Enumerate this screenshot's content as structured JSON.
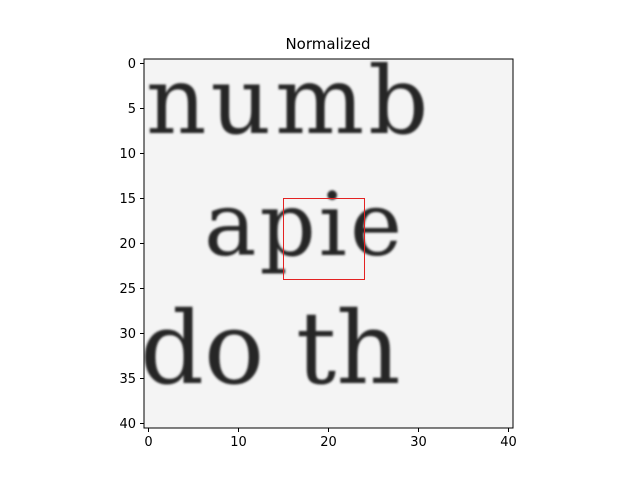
{
  "chart_data": {
    "type": "heatmap",
    "title": "Normalized",
    "xlabel": "",
    "ylabel": "",
    "xlim": [
      -0.5,
      40.5
    ],
    "ylim": [
      40.5,
      -0.5
    ],
    "xticks": [
      0,
      10,
      20,
      30,
      40
    ],
    "yticks": [
      0,
      5,
      10,
      15,
      20,
      25,
      30,
      35,
      40
    ],
    "colormap": "gray",
    "grid": false,
    "image_text": [
      {
        "text": "numb",
        "row_range": [
          1,
          8
        ]
      },
      {
        "text": "apie",
        "row_range": [
          12,
          24
        ]
      },
      {
        "text": "do th",
        "row_range": [
          28,
          36
        ]
      }
    ],
    "highlight_box": {
      "x_range": [
        15,
        24
      ],
      "y_range": [
        15,
        24
      ],
      "color": "#e32222"
    }
  }
}
